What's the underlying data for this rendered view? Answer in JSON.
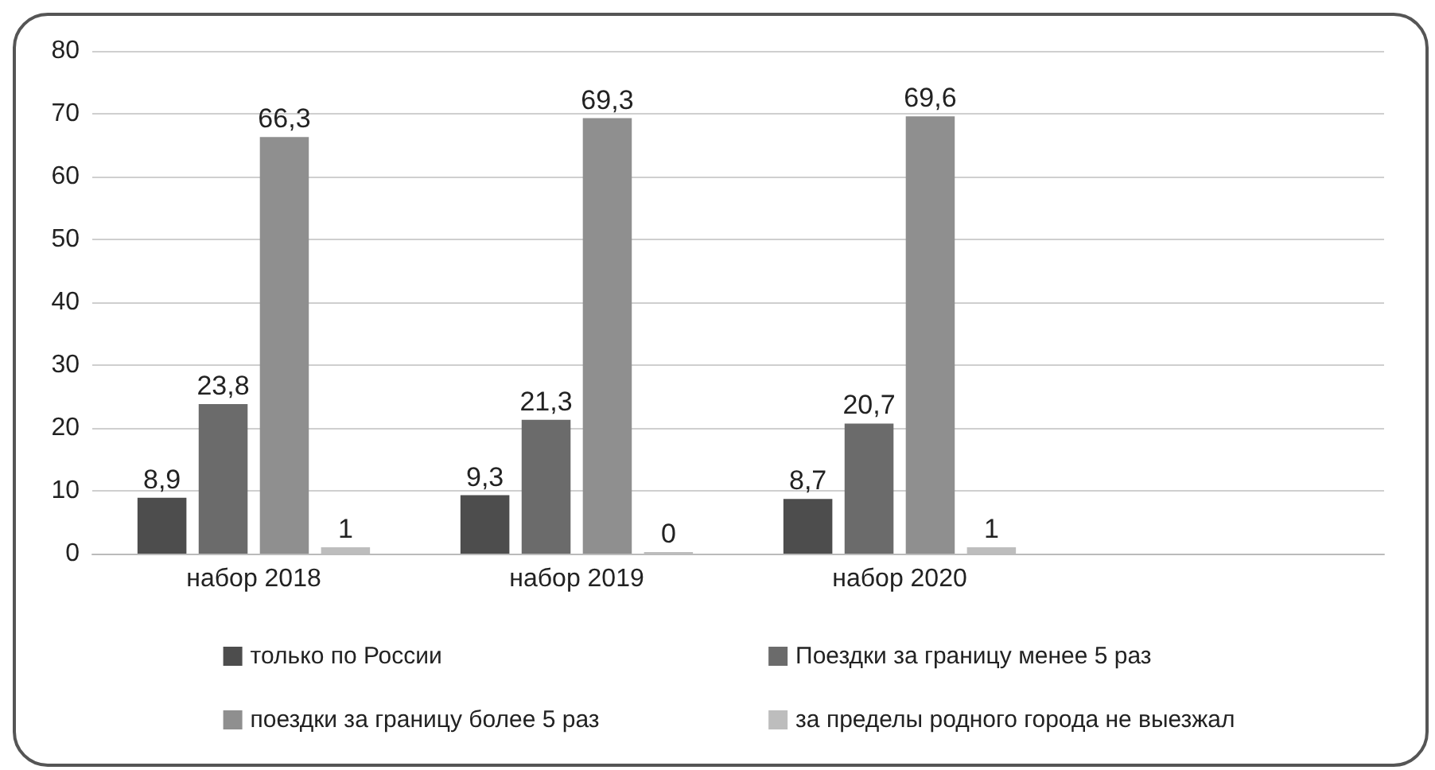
{
  "chart_data": {
    "type": "bar",
    "categories": [
      "набор 2018",
      "набор 2019",
      "набор 2020",
      null
    ],
    "series": [
      {
        "name": "только по России",
        "color": "#4d4d4d",
        "values": [
          8.9,
          9.3,
          8.7,
          null
        ],
        "value_labels": [
          "8,9",
          "9,3",
          "8,7",
          null
        ]
      },
      {
        "name": "Поездки за границу менее 5 раз",
        "color": "#6b6b6b",
        "values": [
          23.8,
          21.3,
          20.7,
          null
        ],
        "value_labels": [
          "23,8",
          "21,3",
          "20,7",
          null
        ]
      },
      {
        "name": "поездки за границу более 5 раз",
        "color": "#8f8f8f",
        "values": [
          66.3,
          69.3,
          69.6,
          null
        ],
        "value_labels": [
          "66,3",
          "69,3",
          "69,6",
          null
        ]
      },
      {
        "name": "за пределы родного города не выезжал",
        "color": "#bdbdbd",
        "values": [
          1,
          0,
          1,
          null
        ],
        "value_labels": [
          "1",
          "0",
          "1",
          null
        ]
      }
    ],
    "ylim": [
      0,
      80
    ],
    "yticks": [
      0,
      10,
      20,
      30,
      40,
      50,
      60,
      70,
      80
    ],
    "grid": "y",
    "legend": "bottom"
  }
}
